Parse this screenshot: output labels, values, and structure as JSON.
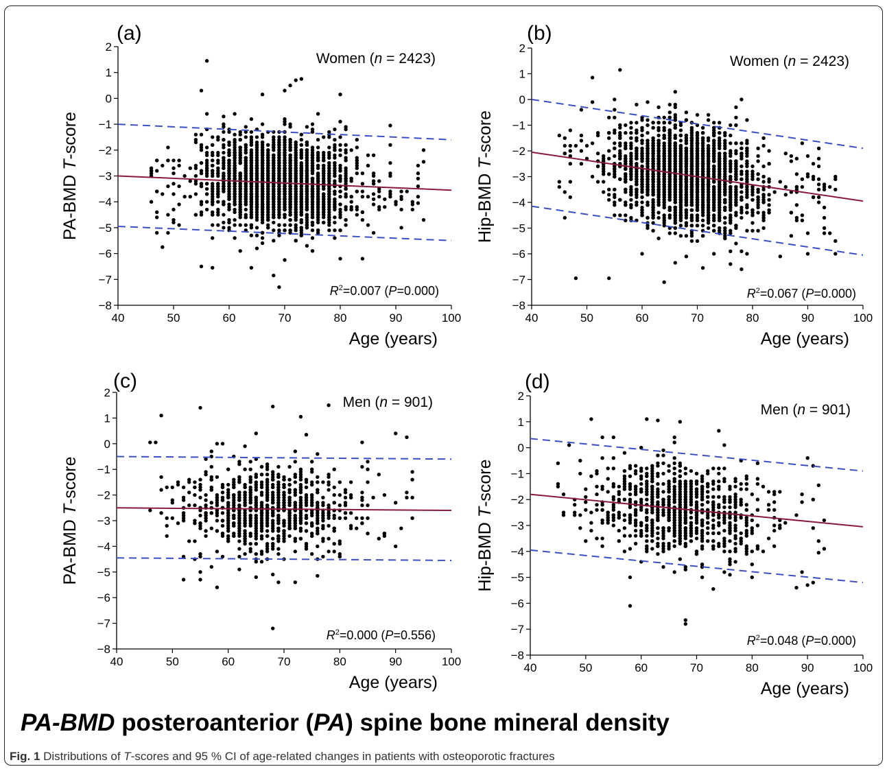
{
  "figure": {
    "subtitle": {
      "part1": "PA-BMD",
      "part2": " posteroanterior (",
      "part3": "PA",
      "part4": ") spine bone mineral density"
    },
    "caption": {
      "label": "Fig. 1",
      "pre": " Distributions of ",
      "t": "T",
      "post": "-scores and 95 % CI of age-related changes in patients with osteoporotic fractures"
    }
  },
  "chart_data": [
    {
      "id": "a",
      "panel_label": "(a)",
      "type": "scatter",
      "group": "Women",
      "n": "2423",
      "xlabel": "Age (years)",
      "ylabel_prefix": "PA-BMD ",
      "ylabel_italic": "T",
      "ylabel_suffix": "-score",
      "xlim": [
        40,
        100
      ],
      "ylim": [
        -8,
        2
      ],
      "xticks": [
        40,
        50,
        60,
        70,
        80,
        90,
        100
      ],
      "yticks": [
        -8,
        -7,
        -6,
        -5,
        -4,
        -3,
        -2,
        -1,
        0,
        1,
        2
      ],
      "r2": "0.007",
      "p": "0.000",
      "fit": {
        "x": [
          40,
          100
        ],
        "y": [
          -3.0,
          -3.55
        ]
      },
      "ci_upper": {
        "x": [
          40,
          100
        ],
        "y": [
          -1.0,
          -1.6
        ]
      },
      "ci_lower": {
        "x": [
          40,
          100
        ],
        "y": [
          -4.95,
          -5.5
        ]
      },
      "point_cloud": {
        "count": 2423,
        "age_range": [
          45,
          95
        ],
        "t_score_mean": -3.3,
        "t_score_sd": 0.95,
        "core_age_range": [
          51,
          86
        ],
        "outliers": [
          [
            56,
            1.45
          ],
          [
            55,
            0.3
          ],
          [
            66,
            0.15
          ],
          [
            70,
            0.3
          ],
          [
            71,
            0.5
          ],
          [
            72,
            0.7
          ],
          [
            73,
            0.75
          ],
          [
            80,
            0.15
          ],
          [
            89,
            -1.05
          ],
          [
            95,
            -2.45
          ],
          [
            94,
            -4.05
          ],
          [
            68,
            -6.85
          ],
          [
            69,
            -7.3
          ],
          [
            55,
            -6.5
          ],
          [
            57,
            -6.55
          ],
          [
            64,
            -6.55
          ],
          [
            70,
            -6.25
          ],
          [
            80,
            -6.2
          ],
          [
            84,
            -6.2
          ],
          [
            47,
            -5.2
          ],
          [
            48,
            -5.75
          ]
        ]
      },
      "colors": {
        "points": "#000000",
        "fit": "#8b1a3a",
        "ci": "#3a4fc4"
      }
    },
    {
      "id": "b",
      "panel_label": "(b)",
      "type": "scatter",
      "group": "Women",
      "n": "2423",
      "xlabel": "Age (years)",
      "ylabel_prefix": "Hip-BMD ",
      "ylabel_italic": "T",
      "ylabel_suffix": "-score",
      "xlim": [
        40,
        100
      ],
      "ylim": [
        -8,
        2
      ],
      "xticks": [
        40,
        50,
        60,
        70,
        80,
        90,
        100
      ],
      "yticks": [
        -8,
        -7,
        -6,
        -5,
        -4,
        -3,
        -2,
        -1,
        0,
        1,
        2
      ],
      "r2": "0.067",
      "p": "0.000",
      "fit": {
        "x": [
          40,
          100
        ],
        "y": [
          -2.05,
          -3.95
        ]
      },
      "ci_upper": {
        "x": [
          40,
          100
        ],
        "y": [
          0.0,
          -1.9
        ]
      },
      "ci_lower": {
        "x": [
          40,
          100
        ],
        "y": [
          -4.15,
          -6.05
        ]
      },
      "point_cloud": {
        "count": 2423,
        "age_range": [
          45,
          95
        ],
        "t_score_mean": -2.75,
        "t_score_sd": 1.05,
        "core_age_range": [
          50,
          85
        ],
        "outliers": [
          [
            51,
            0.85
          ],
          [
            56,
            1.15
          ],
          [
            48,
            -6.95
          ],
          [
            54,
            -6.95
          ],
          [
            64,
            -7.1
          ],
          [
            60,
            -6.0
          ],
          [
            66,
            -6.35
          ],
          [
            71,
            -6.55
          ],
          [
            78,
            -6.6
          ],
          [
            85,
            -6.1
          ],
          [
            93,
            -5.2
          ],
          [
            95,
            -6.0
          ],
          [
            46,
            -4.6
          ],
          [
            47,
            -2.5
          ]
        ]
      },
      "colors": {
        "points": "#000000",
        "fit": "#8b1a3a",
        "ci": "#3a4fc4"
      }
    },
    {
      "id": "c",
      "panel_label": "(c)",
      "type": "scatter",
      "group": "Men",
      "n": "901",
      "xlabel": "Age (years)",
      "ylabel_prefix": "PA-BMD ",
      "ylabel_italic": "T",
      "ylabel_suffix": "-score",
      "xlim": [
        40,
        100
      ],
      "ylim": [
        -8,
        2
      ],
      "xticks": [
        40,
        50,
        60,
        70,
        80,
        90,
        100
      ],
      "yticks": [
        -8,
        -7,
        -6,
        -5,
        -4,
        -3,
        -2,
        -1,
        0,
        1,
        2
      ],
      "r2": "0.000",
      "p": "0.556",
      "fit": {
        "x": [
          40,
          100
        ],
        "y": [
          -2.5,
          -2.6
        ]
      },
      "ci_upper": {
        "x": [
          40,
          100
        ],
        "y": [
          -0.5,
          -0.6
        ]
      },
      "ci_lower": {
        "x": [
          40,
          100
        ],
        "y": [
          -4.45,
          -4.55
        ]
      },
      "point_cloud": {
        "count": 901,
        "age_range": [
          45,
          93
        ],
        "t_score_mean": -2.55,
        "t_score_sd": 0.95,
        "core_age_range": [
          46,
          88
        ],
        "outliers": [
          [
            48,
            1.1
          ],
          [
            55,
            1.4
          ],
          [
            68,
            1.45
          ],
          [
            73,
            1.05
          ],
          [
            78,
            1.5
          ],
          [
            65,
            0.4
          ],
          [
            74,
            0.35
          ],
          [
            84,
            0.05
          ],
          [
            90,
            0.4
          ],
          [
            92,
            0.25
          ],
          [
            58,
            -5.6
          ],
          [
            68,
            -7.2
          ],
          [
            52,
            -5.3
          ],
          [
            55,
            -5.3
          ],
          [
            65,
            -5.2
          ],
          [
            76,
            -5.15
          ],
          [
            46,
            0.05
          ],
          [
            47,
            0.05
          ]
        ]
      },
      "colors": {
        "points": "#000000",
        "fit": "#8b1a3a",
        "ci": "#3a4fc4"
      }
    },
    {
      "id": "d",
      "panel_label": "(d)",
      "type": "scatter",
      "group": "Men",
      "n": "901",
      "xlabel": "Age (years)",
      "ylabel_prefix": "Hip-BMD ",
      "ylabel_italic": "T",
      "ylabel_suffix": "-score",
      "xlim": [
        40,
        100
      ],
      "ylim": [
        -8,
        2
      ],
      "xticks": [
        40,
        50,
        60,
        70,
        80,
        90,
        100
      ],
      "yticks": [
        -8,
        -7,
        -6,
        -5,
        -4,
        -3,
        -2,
        -1,
        0,
        1,
        2
      ],
      "r2": "0.048",
      "p": "0.000",
      "fit": {
        "x": [
          40,
          100
        ],
        "y": [
          -1.8,
          -3.05
        ]
      },
      "ci_upper": {
        "x": [
          40,
          100
        ],
        "y": [
          0.35,
          -0.9
        ]
      },
      "ci_lower": {
        "x": [
          40,
          100
        ],
        "y": [
          -3.95,
          -5.2
        ]
      },
      "point_cloud": {
        "count": 901,
        "age_range": [
          45,
          93
        ],
        "t_score_mean": -2.3,
        "t_score_sd": 1.0,
        "core_age_range": [
          46,
          88
        ],
        "outliers": [
          [
            51,
            1.1
          ],
          [
            61,
            1.1
          ],
          [
            63,
            1.05
          ],
          [
            67,
            1.0
          ],
          [
            74,
            0.65
          ],
          [
            58,
            -6.1
          ],
          [
            68,
            -6.65
          ],
          [
            68,
            -6.8
          ],
          [
            73,
            -5.45
          ],
          [
            88,
            -5.4
          ],
          [
            90,
            -5.3
          ],
          [
            91,
            -5.2
          ],
          [
            92,
            -4.05
          ],
          [
            90,
            -0.4
          ],
          [
            92,
            -1.45
          ]
        ]
      },
      "colors": {
        "points": "#000000",
        "fit": "#8b1a3a",
        "ci": "#3a4fc4"
      }
    }
  ]
}
